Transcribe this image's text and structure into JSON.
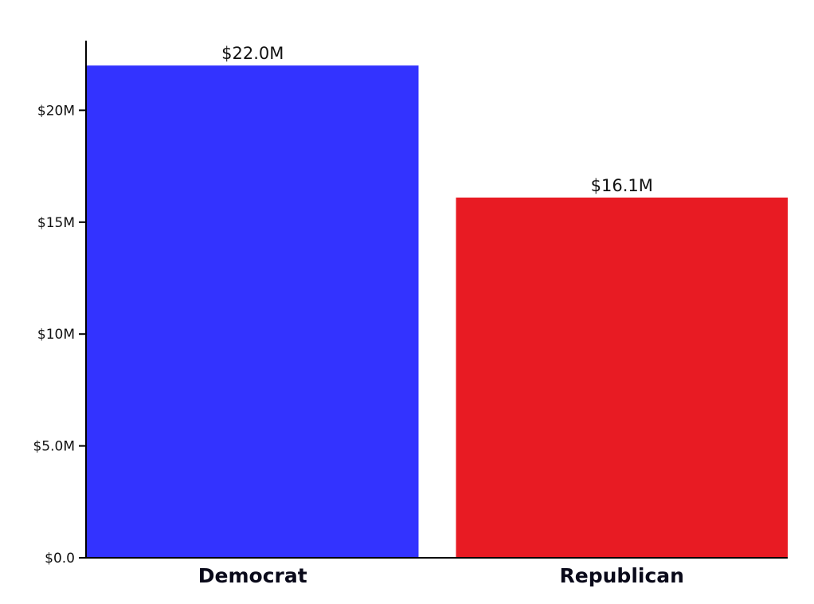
{
  "chart_data": {
    "type": "bar",
    "title": "",
    "xlabel": "",
    "ylabel": "",
    "categories": [
      "Democrat",
      "Republican"
    ],
    "values": [
      22.0,
      16.1
    ],
    "value_labels": [
      "$22.0M",
      "$16.1M"
    ],
    "colors": [
      "#3333FF",
      "#E81B23"
    ],
    "unit": "millions USD",
    "ylim": [
      0,
      23
    ],
    "yticks": [
      0,
      5,
      10,
      15,
      20
    ],
    "ytick_labels": [
      "$0.0",
      "$5.0M",
      "$10M",
      "$15M",
      "$20M"
    ],
    "grid": false,
    "legend": "none"
  }
}
